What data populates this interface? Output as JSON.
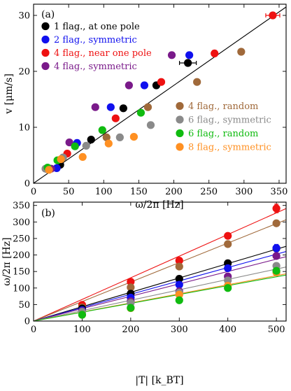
{
  "chart_data": [
    {
      "type": "scatter",
      "panel_label": "(a)",
      "xlabel": "ω/2π [Hz]",
      "ylabel": "v [μm/s]",
      "xlim": [
        0,
        360
      ],
      "ylim": [
        0,
        32
      ],
      "xticks": [
        0,
        50,
        100,
        150,
        200,
        250,
        300,
        350
      ],
      "yticks": [
        0,
        10,
        20,
        30
      ],
      "grid": false,
      "legend_placement": [
        "top-left",
        "lower-right"
      ],
      "fit_line": {
        "x": [
          0,
          360
        ],
        "y": [
          0,
          31.5
        ],
        "color": "#000000"
      },
      "series": [
        {
          "name": "1 flag., at one pole",
          "color": "#000000",
          "legend_group": 0,
          "x": [
            38,
            82,
            128,
            175,
            220
          ],
          "y": [
            3.3,
            7.8,
            13.4,
            17.5,
            21.5
          ],
          "xerr": [
            0,
            0,
            0,
            0,
            12
          ]
        },
        {
          "name": "2 flag., symmetric",
          "color": "#1010ee",
          "legend_group": 0,
          "x": [
            33,
            62,
            110,
            158,
            222
          ],
          "y": [
            2.7,
            7.2,
            13.6,
            17.5,
            22.9
          ]
        },
        {
          "name": "4 flag., near one pole",
          "color": "#ee1111",
          "legend_group": 0,
          "x": [
            20,
            48,
            117,
            182,
            258,
            341
          ],
          "y": [
            2.6,
            5.3,
            11.6,
            18.1,
            23.2,
            30.0
          ],
          "xerr": [
            0,
            0,
            0,
            0,
            0,
            10
          ]
        },
        {
          "name": "4 flag., symmetric",
          "color": "#7a1a8a",
          "legend_group": 0,
          "x": [
            25,
            51,
            88,
            136,
            197
          ],
          "y": [
            2.6,
            7.3,
            13.6,
            17.5,
            22.9
          ]
        },
        {
          "name": "4 flag., random",
          "color": "#a0693a",
          "legend_group": 1,
          "x": [
            20,
            42,
            104,
            163,
            233,
            296
          ],
          "y": [
            2.5,
            4.6,
            8.2,
            13.6,
            18.1,
            23.5
          ]
        },
        {
          "name": "6 flag., symmetric",
          "color": "#8a8a8a",
          "legend_group": 1,
          "x": [
            17,
            42,
            75,
            123,
            167
          ],
          "y": [
            2.6,
            4.6,
            6.7,
            8.2,
            10.4
          ]
        },
        {
          "name": "6 flag., random",
          "color": "#10bb10",
          "legend_group": 1,
          "x": [
            20,
            34,
            59,
            98,
            153
          ],
          "y": [
            2.8,
            4.1,
            6.6,
            9.5,
            12.6
          ]
        },
        {
          "name": "8 flag., symmetric",
          "color": "#ff9022",
          "legend_group": 1,
          "x": [
            22,
            39,
            70,
            107,
            143
          ],
          "y": [
            2.4,
            4.3,
            4.7,
            7.1,
            8.3
          ]
        }
      ]
    },
    {
      "type": "scatter",
      "panel_label": "(b)",
      "xlabel": "|T| [k_BT]",
      "ylabel": "ω/2π [Hz]",
      "xlim": [
        0,
        520
      ],
      "ylim": [
        0,
        360
      ],
      "xticks": [
        0,
        100,
        200,
        300,
        400,
        500
      ],
      "yticks": [
        0,
        50,
        100,
        150,
        200,
        250,
        300,
        350
      ],
      "grid": false,
      "x": [
        100,
        200,
        300,
        400,
        500
      ],
      "series": [
        {
          "color": "#ee1111",
          "values": [
            49,
            119,
            183,
            258,
            341
          ],
          "fit_slope": 0.655,
          "yerr": [
            0,
            0,
            0,
            0,
            13
          ]
        },
        {
          "color": "#a0693a",
          "values": [
            41,
            102,
            165,
            233,
            296
          ],
          "fit_slope": 0.59
        },
        {
          "color": "#000000",
          "values": [
            38,
            83,
            128,
            175,
            220
          ],
          "fit_slope": 0.435
        },
        {
          "color": "#1010ee",
          "values": [
            33,
            71,
            110,
            160,
            221
          ],
          "fit_slope": 0.405,
          "yerr": [
            0,
            0,
            0,
            0,
            11
          ]
        },
        {
          "color": "#7a1a8a",
          "values": [
            30,
            60,
            90,
            135,
            197
          ],
          "fit_slope": 0.375
        },
        {
          "color": "#8a8a8a",
          "values": [
            28,
            55,
            86,
            123,
            167
          ],
          "fit_slope": 0.315
        },
        {
          "color": "#ff9022",
          "values": [
            19,
            39,
            80,
            107,
            147
          ],
          "fit_slope": 0.275
        },
        {
          "color": "#10bb10",
          "values": [
            19,
            40,
            63,
            100,
            152
          ],
          "fit_slope": 0.268
        }
      ]
    }
  ]
}
